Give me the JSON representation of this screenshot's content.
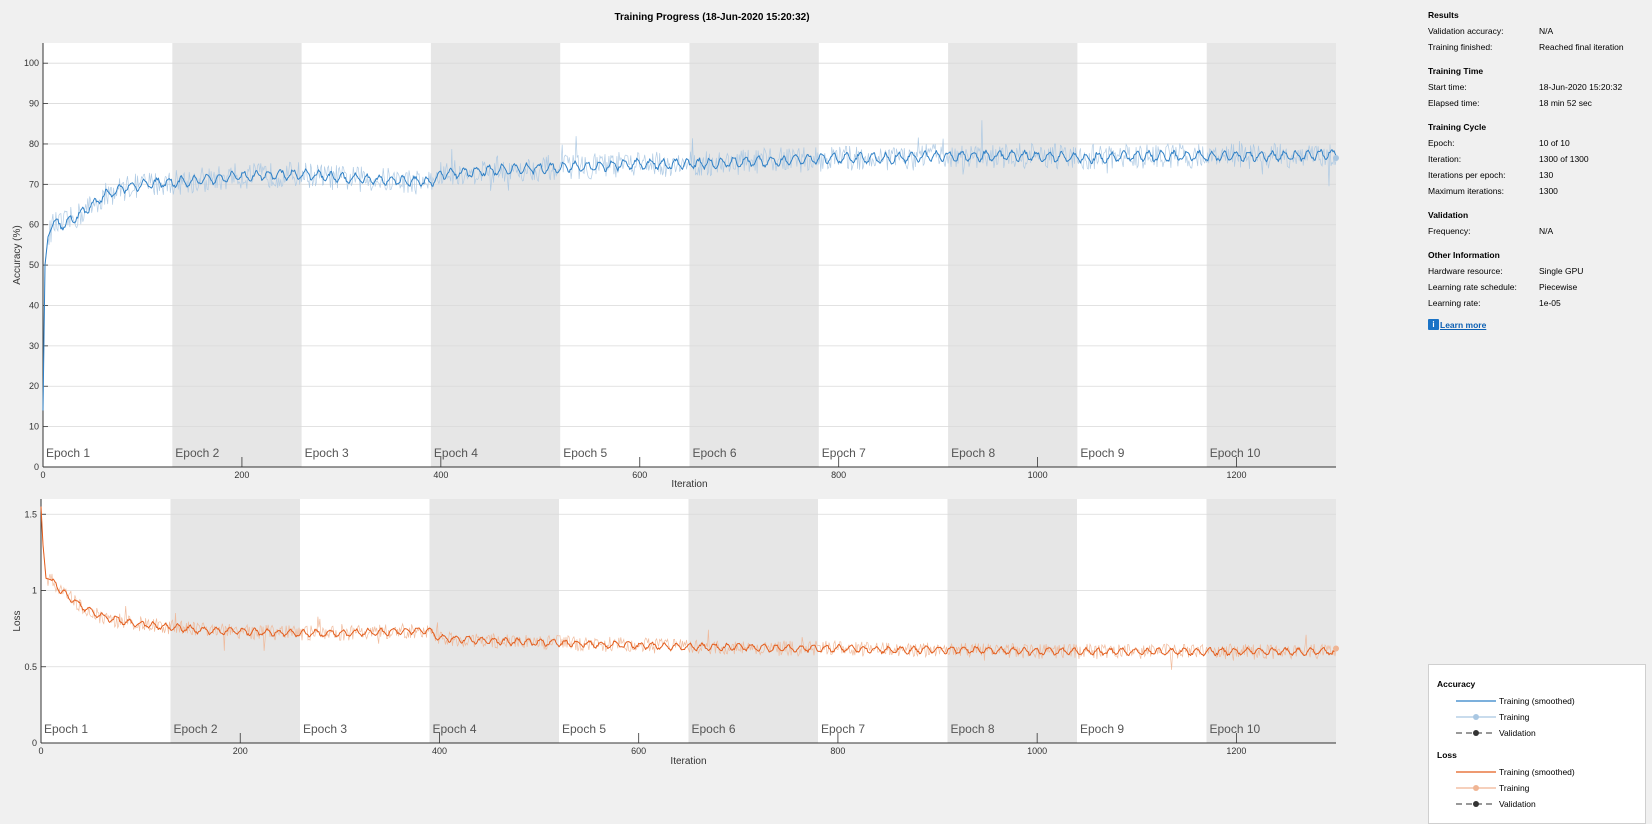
{
  "title": "Training Progress (18-Jun-2020 15:20:32)",
  "colors": {
    "accuracy_smoothed": "#2f80c6",
    "accuracy_raw": "#a9c7e2",
    "loss_smoothed": "#e35d1c",
    "loss_raw": "#f0b594",
    "epoch_shade": "#e6e6e6"
  },
  "epochs": [
    "Epoch 1",
    "Epoch 2",
    "Epoch 3",
    "Epoch 4",
    "Epoch 5",
    "Epoch 6",
    "Epoch 7",
    "Epoch 8",
    "Epoch 9",
    "Epoch 10"
  ],
  "chart_data": [
    {
      "type": "line",
      "name": "accuracy",
      "xlabel": "Iteration",
      "ylabel": "Accuracy (%)",
      "xlim": [
        0,
        1300
      ],
      "ylim": [
        0,
        105
      ],
      "xticks": [
        0,
        200,
        400,
        600,
        800,
        1000,
        1200
      ],
      "yticks": [
        0,
        10,
        20,
        30,
        40,
        50,
        60,
        70,
        80,
        90,
        100
      ],
      "epoch_boundaries": [
        0,
        130,
        260,
        390,
        520,
        650,
        780,
        910,
        1040,
        1170,
        1300
      ],
      "series": [
        {
          "name": "Training (smoothed)",
          "x": [
            0,
            2,
            5,
            10,
            20,
            40,
            60,
            80,
            100,
            130,
            160,
            200,
            260,
            300,
            350,
            390,
            400,
            450,
            500,
            550,
            600,
            650,
            700,
            750,
            800,
            850,
            900,
            950,
            1000,
            1050,
            1100,
            1150,
            1200,
            1250,
            1300
          ],
          "y": [
            14,
            50,
            57,
            60,
            60,
            63,
            67,
            69,
            70,
            70.5,
            71,
            72,
            72.5,
            71.5,
            71,
            70.5,
            72.5,
            73.5,
            74,
            74.5,
            75,
            75,
            75.5,
            76,
            76.5,
            76.5,
            77,
            77,
            77,
            76.5,
            77,
            77,
            77,
            77,
            77.5
          ]
        },
        {
          "name": "Training",
          "x": [
            0,
            2,
            5,
            10,
            20,
            40,
            60,
            80,
            100,
            130,
            160,
            200,
            260,
            300,
            350,
            390,
            400,
            450,
            500,
            550,
            600,
            650,
            700,
            750,
            800,
            850,
            900,
            950,
            1000,
            1050,
            1100,
            1150,
            1200,
            1250,
            1300
          ],
          "y": [
            14,
            50,
            57,
            60,
            60,
            63,
            67,
            69,
            70,
            70.5,
            71,
            72,
            72.5,
            71.5,
            71,
            70.5,
            72.5,
            73.5,
            74,
            74.5,
            75,
            75,
            75.5,
            76,
            76.5,
            76.5,
            77,
            77,
            77,
            76.5,
            77,
            77,
            77,
            77,
            77.5
          ]
        }
      ]
    },
    {
      "type": "line",
      "name": "loss",
      "xlabel": "Iteration",
      "ylabel": "Loss",
      "xlim": [
        0,
        1300
      ],
      "ylim": [
        0,
        1.6
      ],
      "xticks": [
        0,
        200,
        400,
        600,
        800,
        1000,
        1200
      ],
      "yticks": [
        0,
        0.5,
        1,
        1.5
      ],
      "ytick_labels": [
        "0",
        "0.5",
        "1",
        "1.5"
      ],
      "epoch_boundaries": [
        0,
        130,
        260,
        390,
        520,
        650,
        780,
        910,
        1040,
        1170,
        1300
      ],
      "series": [
        {
          "name": "Training (smoothed)",
          "x": [
            0,
            2,
            5,
            10,
            20,
            40,
            60,
            80,
            100,
            130,
            160,
            200,
            260,
            300,
            350,
            390,
            400,
            450,
            500,
            550,
            600,
            650,
            700,
            750,
            800,
            850,
            900,
            950,
            1000,
            1050,
            1100,
            1150,
            1200,
            1250,
            1300
          ],
          "y": [
            1.55,
            1.3,
            1.08,
            1.07,
            1.0,
            0.9,
            0.83,
            0.8,
            0.78,
            0.76,
            0.74,
            0.73,
            0.72,
            0.72,
            0.73,
            0.74,
            0.69,
            0.67,
            0.66,
            0.65,
            0.64,
            0.63,
            0.63,
            0.62,
            0.62,
            0.61,
            0.61,
            0.61,
            0.6,
            0.6,
            0.6,
            0.6,
            0.6,
            0.6,
            0.6
          ]
        },
        {
          "name": "Training",
          "x": [
            0,
            2,
            5,
            10,
            20,
            40,
            60,
            80,
            100,
            130,
            160,
            200,
            260,
            300,
            350,
            390,
            400,
            450,
            500,
            550,
            600,
            650,
            700,
            750,
            800,
            850,
            900,
            950,
            1000,
            1050,
            1100,
            1150,
            1200,
            1250,
            1300
          ],
          "y": [
            1.55,
            1.3,
            1.08,
            1.07,
            1.0,
            0.9,
            0.83,
            0.8,
            0.78,
            0.76,
            0.74,
            0.73,
            0.72,
            0.72,
            0.73,
            0.74,
            0.69,
            0.67,
            0.66,
            0.65,
            0.64,
            0.63,
            0.63,
            0.62,
            0.62,
            0.61,
            0.61,
            0.61,
            0.6,
            0.6,
            0.6,
            0.6,
            0.6,
            0.6,
            0.6
          ]
        }
      ]
    }
  ],
  "sidebar": {
    "results": {
      "title": "Results",
      "validation_accuracy_label": "Validation accuracy:",
      "validation_accuracy_value": "N/A",
      "training_finished_label": "Training finished:",
      "training_finished_value": "Reached final iteration"
    },
    "training_time": {
      "title": "Training Time",
      "start_time_label": "Start time:",
      "start_time_value": "18-Jun-2020 15:20:32",
      "elapsed_label": "Elapsed time:",
      "elapsed_value": "18 min 52 sec"
    },
    "training_cycle": {
      "title": "Training Cycle",
      "epoch_label": "Epoch:",
      "epoch_value": "10 of 10",
      "iteration_label": "Iteration:",
      "iteration_value": "1300 of 1300",
      "ipe_label": "Iterations per epoch:",
      "ipe_value": "130",
      "max_iter_label": "Maximum iterations:",
      "max_iter_value": "1300"
    },
    "validation": {
      "title": "Validation",
      "frequency_label": "Frequency:",
      "frequency_value": "N/A"
    },
    "other": {
      "title": "Other Information",
      "hardware_label": "Hardware resource:",
      "hardware_value": "Single GPU",
      "schedule_label": "Learning rate schedule:",
      "schedule_value": "Piecewise",
      "lr_label": "Learning rate:",
      "lr_value": "1e-05"
    },
    "learn_more": "Learn more"
  },
  "legend": {
    "accuracy_title": "Accuracy",
    "loss_title": "Loss",
    "smoothed": "Training (smoothed)",
    "training": "Training",
    "validation": "Validation"
  }
}
